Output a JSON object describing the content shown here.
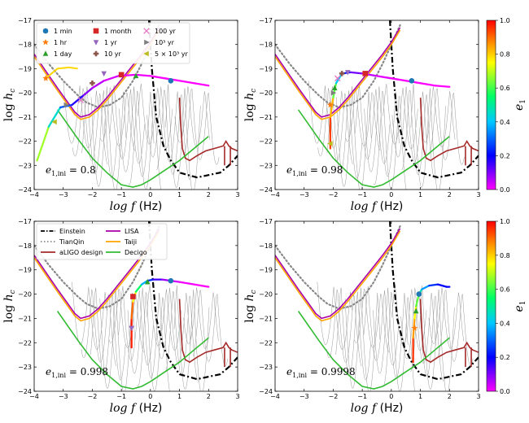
{
  "chart_data": {
    "type": "line",
    "description_axes": "log-log characteristic strain vs frequency, 2x2 panels",
    "xlabel": "log f (Hz)",
    "ylabel": "log h_c",
    "xlim": [
      -4,
      3
    ],
    "ylim": [
      -24,
      -17
    ],
    "xticks": [
      "−4",
      "−3",
      "−2",
      "−1",
      "0",
      "1",
      "2",
      "3"
    ],
    "yticks": [
      "−24",
      "−23",
      "−22",
      "−21",
      "−20",
      "−19",
      "−18",
      "−17"
    ],
    "colorbar": {
      "label": "e1",
      "ticks": [
        "0.0",
        "0.2",
        "0.4",
        "0.6",
        "0.8",
        "1.0"
      ],
      "colormap": [
        "#ff00ff",
        "#0000ff",
        "#00c8ff",
        "#00ff66",
        "#ffff00",
        "#ff8000",
        "#ff0000"
      ]
    },
    "detectors": [
      {
        "name": "Einstein",
        "color": "#000000",
        "style": "dashdot",
        "x": [
          -0.05,
          0.05,
          0.2,
          0.45,
          0.7,
          1.0,
          1.3,
          1.6,
          2.0,
          2.4,
          2.7,
          3.0
        ],
        "y": [
          -17,
          -19.0,
          -21.0,
          -22.2,
          -22.8,
          -23.3,
          -23.4,
          -23.5,
          -23.4,
          -23.3,
          -23.0,
          -22.6
        ]
      },
      {
        "name": "TianQin",
        "color": "#888888",
        "style": "dotted",
        "x": [
          -4,
          -3.5,
          -3,
          -2.5,
          -2.2,
          -1.8,
          -1.4,
          -1.0,
          -0.6,
          -0.3,
          0.0,
          0.3
        ],
        "y": [
          -18.0,
          -18.8,
          -19.5,
          -20.1,
          -20.4,
          -20.6,
          -20.5,
          -20.2,
          -19.5,
          -18.8,
          -18.0,
          -17.2
        ]
      },
      {
        "name": "aLIGO design",
        "color": "#a52a2a",
        "style": "solid",
        "x": [
          1.0,
          1.05,
          1.1,
          1.2,
          1.35,
          1.6,
          1.9,
          2.2,
          2.5,
          2.6,
          2.7,
          2.8,
          3.0
        ],
        "y": [
          -20.2,
          -21.5,
          -22.3,
          -22.7,
          -22.8,
          -22.6,
          -22.4,
          -22.3,
          -22.2,
          -22.0,
          -22.2,
          -22.3,
          -22.4
        ]
      },
      {
        "name": "LISA",
        "color": "#aa00aa",
        "style": "solid",
        "x": [
          -4,
          -3.6,
          -3.2,
          -2.9,
          -2.6,
          -2.4,
          -2.1,
          -1.8,
          -1.5,
          -1.1,
          -0.7,
          -0.3,
          0.0,
          0.3
        ],
        "y": [
          -18.4,
          -19.1,
          -19.8,
          -20.3,
          -20.8,
          -21.0,
          -20.9,
          -20.6,
          -20.2,
          -19.6,
          -19.0,
          -18.4,
          -17.9,
          -17.3
        ]
      },
      {
        "name": "Taiji",
        "color": "#ffa500",
        "style": "solid",
        "x": [
          -4,
          -3.6,
          -3.2,
          -2.9,
          -2.6,
          -2.4,
          -2.1,
          -1.8,
          -1.5,
          -1.1,
          -0.7,
          -0.3,
          0.0,
          0.3
        ],
        "y": [
          -18.5,
          -19.2,
          -19.9,
          -20.4,
          -20.9,
          -21.1,
          -21.0,
          -20.7,
          -20.3,
          -19.7,
          -19.1,
          -18.5,
          -18.0,
          -17.4
        ]
      },
      {
        "name": "Decigo",
        "color": "#33bb33",
        "style": "solid",
        "x": [
          -3.2,
          -2.5,
          -2.0,
          -1.5,
          -1.0,
          -0.6,
          -0.3,
          0.0,
          0.5,
          1.0,
          1.5,
          2.0
        ],
        "y": [
          -20.7,
          -21.9,
          -22.7,
          -23.3,
          -23.8,
          -23.9,
          -23.8,
          -23.6,
          -23.2,
          -22.8,
          -22.3,
          -21.8
        ]
      }
    ],
    "time_markers": [
      {
        "label": "1 min",
        "symbol": "circle",
        "color": "#1f77b4"
      },
      {
        "label": "1 hr",
        "symbol": "star",
        "color": "#ff7f0e"
      },
      {
        "label": "1 day",
        "symbol": "triangle-up",
        "color": "#2ca02c"
      },
      {
        "label": "1 month",
        "symbol": "square",
        "color": "#d62728"
      },
      {
        "label": "1 yr",
        "symbol": "triangle-down",
        "color": "#9467bd"
      },
      {
        "label": "10 yr",
        "symbol": "plus-filled",
        "color": "#8c564b"
      },
      {
        "label": "100 yr",
        "symbol": "x",
        "color": "#e377c2"
      },
      {
        "label": "10³ yr",
        "symbol": "triangle-right",
        "color": "#7f7f7f"
      },
      {
        "label": "5 × 10³ yr",
        "symbol": "triangle-left",
        "color": "#bcbd22"
      }
    ],
    "panels": [
      {
        "annotation": "e1,ini = 0.8",
        "track_x": [
          -3.9,
          -3.5,
          -3.1,
          -2.7,
          -2.3,
          -2.0,
          -1.6,
          -1.1,
          -0.5,
          0.0,
          0.5,
          1.0,
          1.5,
          2.0
        ],
        "track_y": [
          -22.8,
          -21.4,
          -20.6,
          -20.5,
          -20.1,
          -19.8,
          -19.5,
          -19.3,
          -19.25,
          -19.3,
          -19.4,
          -19.5,
          -19.6,
          -19.7
        ],
        "track_e": [
          0.8,
          0.55,
          0.35,
          0.22,
          0.12,
          0.07,
          0.04,
          0.02,
          0.01,
          0.01,
          0.0,
          0.0,
          0.0,
          0.0
        ],
        "hump_x": [
          -3.6,
          -3.2,
          -2.8,
          -2.5
        ],
        "hump_y": [
          -19.4,
          -19.0,
          -18.95,
          -19.0
        ],
        "markers": [
          {
            "t": "1 min",
            "x": 0.7,
            "y": -19.5
          },
          {
            "t": "1 hr",
            "x": -3.6,
            "y": -19.4
          },
          {
            "t": "1 day",
            "x": -0.5,
            "y": -19.3
          },
          {
            "t": "1 month",
            "x": -1.0,
            "y": -19.25
          },
          {
            "t": "1 yr",
            "x": -1.6,
            "y": -19.2
          },
          {
            "t": "10 yr",
            "x": -2.0,
            "y": -19.6
          },
          {
            "t": "100 yr",
            "x": -2.4,
            "y": -20.3
          },
          {
            "t": "10³ yr",
            "x": -2.9,
            "y": -20.5
          },
          {
            "t": "5 × 10³ yr",
            "x": -3.3,
            "y": -21.2
          }
        ]
      },
      {
        "annotation": "e1,ini = 0.98",
        "track_x": [
          -2.1,
          -2.1,
          -2.0,
          -1.9,
          -1.7,
          -1.4,
          -1.0,
          -0.5,
          0.0,
          0.5,
          1.0,
          1.5,
          2.0
        ],
        "track_y": [
          -22.3,
          -21.0,
          -20.2,
          -19.6,
          -19.2,
          -19.15,
          -19.2,
          -19.3,
          -19.4,
          -19.5,
          -19.6,
          -19.7,
          -19.75
        ],
        "track_e": [
          0.98,
          0.9,
          0.75,
          0.5,
          0.3,
          0.15,
          0.07,
          0.03,
          0.01,
          0.0,
          0.0,
          0.0,
          0.0
        ],
        "markers": [
          {
            "t": "1 min",
            "x": 0.7,
            "y": -19.5
          },
          {
            "t": "1 hr",
            "x": -2.1,
            "y": -20.5
          },
          {
            "t": "1 day",
            "x": -1.95,
            "y": -19.8
          },
          {
            "t": "1 month",
            "x": -0.9,
            "y": -19.2
          },
          {
            "t": "1 yr",
            "x": -1.5,
            "y": -19.15
          },
          {
            "t": "10 yr",
            "x": -1.7,
            "y": -19.2
          },
          {
            "t": "100 yr",
            "x": -1.85,
            "y": -19.4
          },
          {
            "t": "10³ yr",
            "x": -2.0,
            "y": -20.0
          },
          {
            "t": "5 × 10³ yr",
            "x": -2.1,
            "y": -22.1
          }
        ]
      },
      {
        "annotation": "e1,ini = 0.998",
        "track_x": [
          -0.65,
          -0.65,
          -0.6,
          -0.5,
          -0.3,
          -0.1,
          0.1,
          0.4,
          0.7,
          1.0,
          1.5,
          2.0
        ],
        "track_y": [
          -22.2,
          -21.0,
          -20.3,
          -19.9,
          -19.6,
          -19.45,
          -19.4,
          -19.4,
          -19.45,
          -19.5,
          -19.6,
          -19.7
        ],
        "track_e": [
          0.998,
          0.95,
          0.85,
          0.65,
          0.45,
          0.3,
          0.2,
          0.1,
          0.05,
          0.02,
          0.0,
          0.0
        ],
        "markers": [
          {
            "t": "1 min",
            "x": 0.7,
            "y": -19.45
          },
          {
            "t": "1 day",
            "x": -0.1,
            "y": -19.5
          },
          {
            "t": "1 month",
            "x": -0.6,
            "y": -20.1
          },
          {
            "t": "1 yr",
            "x": -0.65,
            "y": -21.4
          }
        ]
      },
      {
        "annotation": "e1,ini = 0.9998",
        "track_x": [
          0.75,
          0.75,
          0.8,
          0.85,
          0.95,
          1.05,
          1.3,
          1.6,
          1.9,
          2.0
        ],
        "track_y": [
          -22.8,
          -21.8,
          -21.0,
          -20.5,
          -20.0,
          -19.8,
          -19.65,
          -19.6,
          -19.7,
          -19.7
        ],
        "track_e": [
          0.9998,
          0.9,
          0.8,
          0.7,
          0.55,
          0.4,
          0.3,
          0.2,
          0.2,
          0.2
        ],
        "markers": [
          {
            "t": "1 min",
            "x": 0.95,
            "y": -20.0
          },
          {
            "t": "1 hr",
            "x": 0.8,
            "y": -21.4
          },
          {
            "t": "1 day",
            "x": 0.85,
            "y": -20.7
          }
        ]
      }
    ]
  }
}
